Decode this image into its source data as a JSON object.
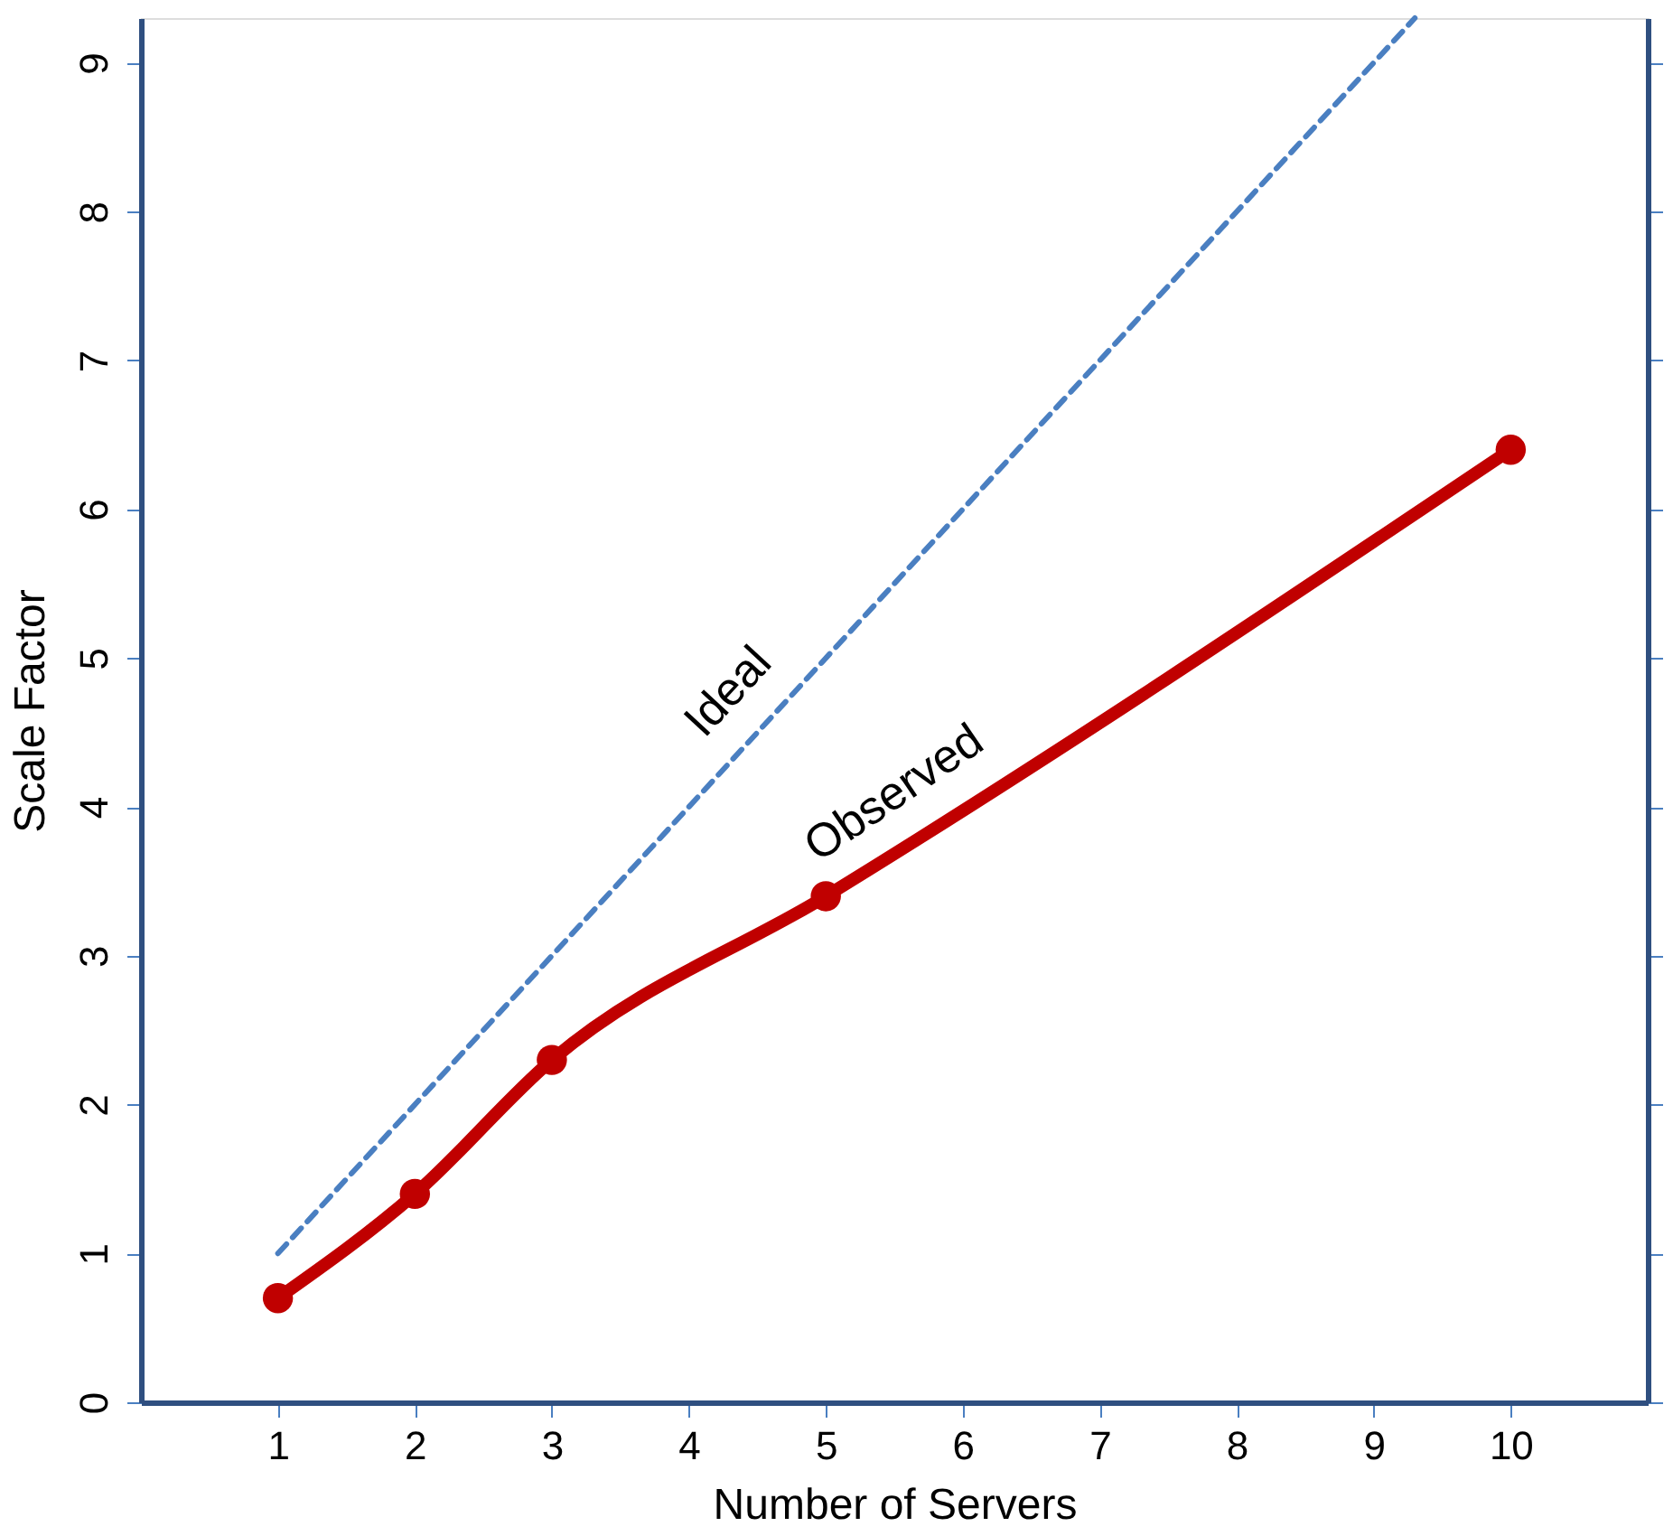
{
  "chart_data": {
    "type": "line",
    "xlabel": "Number of Servers",
    "ylabel": "Scale Factor",
    "xlim": [
      0,
      11
    ],
    "ylim": [
      0,
      9.3
    ],
    "xticks": [
      1,
      2,
      3,
      4,
      5,
      6,
      7,
      8,
      9,
      10
    ],
    "yticks": [
      0,
      1,
      2,
      3,
      4,
      5,
      6,
      7,
      8,
      9
    ],
    "grid": false,
    "series": [
      {
        "color": "#4a7fc1",
        "x": [
          1,
          9.3
        ],
        "values": [
          1,
          9.3
        ],
        "line_style": "dashed",
        "marker": "none"
      },
      {
        "color": "#c00000",
        "x": [
          1,
          2,
          3,
          5,
          10
        ],
        "values": [
          0.7,
          1.4,
          2.3,
          3.4,
          6.4
        ],
        "line_style": "solid",
        "marker": "circle"
      }
    ],
    "annotations": [
      "Ideal",
      "Observed"
    ]
  }
}
